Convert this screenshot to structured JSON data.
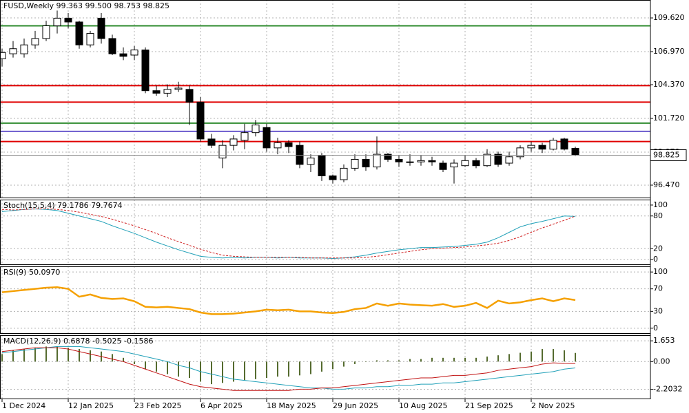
{
  "chart_data": [
    {
      "type": "candlestick",
      "title": "FUSD,Weekly  99.363 99.500 98.753 98.825",
      "categories": [
        "1 Dec 2024",
        null,
        null,
        null,
        null,
        null,
        "12 Jan 2025",
        null,
        null,
        null,
        null,
        null,
        "23 Feb 2025",
        null,
        null,
        null,
        null,
        null,
        "6 Apr 2025",
        null,
        null,
        null,
        null,
        null,
        "18 May 2025",
        null,
        null,
        null,
        null,
        null,
        "29 Jun 2025",
        null,
        null,
        null,
        null,
        null,
        "10 Aug 2025",
        null,
        null,
        null,
        null,
        null,
        "21 Sep 2025",
        null,
        null,
        null,
        null,
        null,
        "2 Nov 2025",
        null,
        null,
        null,
        null
      ],
      "open": [
        106.4,
        106.8,
        106.8,
        107.5,
        108.0,
        109.0,
        109.6,
        109.3,
        107.5,
        109.6,
        108.0,
        106.8,
        106.7,
        107.1,
        103.9,
        103.7,
        104.0,
        104.0,
        103.0,
        100.1,
        98.6,
        99.6,
        100.0,
        100.6,
        101.0,
        99.4,
        99.8,
        99.6,
        98.1,
        98.8,
        97.2,
        96.9,
        97.8,
        98.5,
        97.9,
        98.9,
        98.5,
        98.3,
        98.3,
        98.4,
        98.2,
        97.9,
        98.0,
        98.4,
        98.0,
        98.9,
        98.2,
        98.7,
        99.4,
        99.6,
        99.3,
        100.1,
        99.363
      ],
      "high": [
        107.2,
        107.8,
        108.0,
        108.6,
        109.4,
        110.2,
        110.0,
        109.4,
        108.6,
        110.0,
        108.3,
        107.3,
        107.4,
        107.3,
        104.3,
        104.4,
        104.6,
        104.3,
        103.4,
        100.5,
        100.0,
        100.4,
        101.3,
        101.6,
        101.3,
        100.2,
        100.0,
        99.9,
        98.9,
        99.0,
        97.3,
        98.1,
        98.9,
        98.9,
        100.3,
        99.0,
        98.8,
        98.9,
        98.8,
        98.7,
        98.4,
        98.5,
        98.8,
        98.6,
        99.3,
        99.1,
        99.1,
        99.6,
        99.9,
        99.8,
        100.2,
        100.2,
        99.5
      ],
      "low": [
        105.8,
        106.5,
        106.5,
        107.2,
        107.8,
        108.4,
        108.8,
        107.2,
        107.3,
        107.6,
        106.7,
        106.3,
        106.3,
        103.7,
        103.5,
        103.4,
        103.8,
        101.2,
        99.9,
        99.4,
        97.8,
        99.2,
        99.3,
        100.3,
        99.1,
        98.9,
        99.0,
        97.8,
        97.5,
        96.8,
        96.6,
        96.7,
        97.6,
        97.6,
        97.7,
        98.3,
        97.9,
        98.0,
        98.0,
        98.0,
        97.5,
        96.6,
        97.9,
        97.8,
        97.9,
        97.9,
        98.0,
        98.5,
        99.1,
        99.0,
        99.2,
        99.2,
        98.753
      ],
      "close": [
        106.9,
        107.2,
        107.5,
        108.0,
        109.0,
        109.6,
        109.3,
        107.5,
        108.4,
        108.0,
        106.8,
        106.6,
        107.1,
        103.9,
        103.7,
        104.0,
        104.1,
        103.0,
        100.1,
        99.6,
        99.6,
        100.1,
        100.6,
        101.2,
        99.4,
        99.8,
        99.5,
        98.1,
        98.6,
        97.2,
        96.9,
        97.8,
        98.5,
        97.9,
        98.9,
        98.5,
        98.3,
        98.3,
        98.4,
        98.3,
        97.7,
        98.2,
        98.4,
        98.0,
        98.9,
        98.1,
        98.7,
        99.4,
        99.6,
        99.3,
        100.0,
        99.3,
        98.825
      ],
      "up_color": "#ffffff",
      "down_color": "#000000",
      "levels": [
        {
          "value": 109.0,
          "color": "#2e8b2e"
        },
        {
          "value": 104.3,
          "color": "#e00000"
        },
        {
          "value": 103.0,
          "color": "#e00000"
        },
        {
          "value": 101.35,
          "color": "#2e8b2e"
        },
        {
          "value": 100.7,
          "color": "#6a5acd"
        },
        {
          "value": 99.9,
          "color": "#e00000"
        }
      ],
      "ylim": [
        95.44,
        111.03
      ],
      "yticks": [
        {
          "value": 109.62,
          "label": "109.620"
        },
        {
          "value": 106.97,
          "label": "106.970"
        },
        {
          "value": 104.37,
          "label": "104.370"
        },
        {
          "value": 101.72,
          "label": "101.720"
        },
        {
          "value": 99.07,
          "label": "99.070"
        },
        {
          "value": 96.47,
          "label": "96.470"
        }
      ],
      "grid": true
    },
    {
      "type": "line",
      "title": "Stoch(15,5,4) 79.1786 79.7674",
      "series": [
        {
          "color": "#20a0b8",
          "dash": false,
          "values": [
            88,
            90,
            92,
            93,
            92,
            90,
            85,
            80,
            75,
            70,
            62,
            55,
            48,
            40,
            32,
            25,
            18,
            12,
            6,
            4,
            3,
            4,
            3,
            4,
            4,
            3,
            4,
            3,
            3,
            3,
            2,
            3,
            5,
            8,
            12,
            15,
            18,
            20,
            22,
            22,
            23,
            24,
            26,
            28,
            32,
            40,
            50,
            60,
            66,
            70,
            75,
            80,
            79.1786
          ]
        },
        {
          "color": "#d02020",
          "dash": true,
          "values": [
            92,
            91,
            92,
            93,
            93,
            92,
            90,
            87,
            83,
            79,
            74,
            68,
            62,
            55,
            48,
            40,
            33,
            26,
            19,
            13,
            8,
            6,
            5,
            4,
            4,
            4,
            4,
            4,
            3,
            3,
            3,
            3,
            3,
            4,
            6,
            9,
            12,
            15,
            18,
            20,
            21,
            22,
            23,
            25,
            27,
            30,
            35,
            42,
            50,
            58,
            65,
            72,
            79.7674
          ]
        }
      ],
      "ylim": [
        -10,
        110
      ],
      "yticks": [
        0,
        20,
        80,
        100
      ],
      "grid": true
    },
    {
      "type": "line",
      "title": "RSI(9) 50.0970",
      "series": [
        {
          "color": "#f5a000",
          "dash": false,
          "values": [
            64,
            66,
            68,
            70,
            72,
            73,
            70,
            56,
            60,
            54,
            52,
            53,
            48,
            38,
            37,
            38,
            36,
            34,
            28,
            25,
            25,
            26,
            28,
            30,
            33,
            32,
            33,
            30,
            30,
            28,
            27,
            29,
            34,
            36,
            44,
            40,
            44,
            42,
            41,
            40,
            43,
            38,
            40,
            45,
            36,
            49,
            44,
            46,
            50,
            53,
            48,
            53,
            50.097
          ]
        }
      ],
      "ylim": [
        -10,
        110
      ],
      "yticks": [
        0,
        30,
        70,
        100
      ],
      "grid": true
    },
    {
      "type": "macd",
      "title": "MACD(12,26,9) 0.6878 -0.5025 -0.1586",
      "series": [
        {
          "color": "#556b2f",
          "style": "histogram",
          "values": [
            0.6,
            0.9,
            1.0,
            1.1,
            1.2,
            1.2,
            1.1,
            1.0,
            0.9,
            0.8,
            0.6,
            0.3,
            -0.2,
            -0.6,
            -0.8,
            -1.0,
            -1.2,
            -1.3,
            -1.6,
            -1.8,
            -1.7,
            -1.6,
            -1.5,
            -1.4,
            -1.3,
            -1.2,
            -1.2,
            -1.1,
            -1.0,
            -0.8,
            -0.6,
            -0.4,
            -0.2,
            0,
            0.1,
            0.1,
            0.1,
            0.2,
            0.2,
            0.3,
            0.3,
            0.3,
            0.3,
            0.3,
            0.4,
            0.5,
            0.6,
            0.7,
            0.8,
            1.0,
            1.0,
            0.9,
            0.6878
          ]
        },
        {
          "color": "#20a0b8",
          "style": "line",
          "values": [
            0.7,
            0.8,
            0.9,
            1.0,
            1.1,
            1.2,
            1.2,
            1.2,
            1.1,
            1.0,
            0.9,
            0.8,
            0.6,
            0.4,
            0.2,
            0,
            -0.3,
            -0.5,
            -0.8,
            -1.0,
            -1.2,
            -1.4,
            -1.5,
            -1.6,
            -1.7,
            -1.8,
            -1.9,
            -2.0,
            -2.1,
            -2.1,
            -2.2,
            -2.2,
            -2.1,
            -2.1,
            -2.0,
            -2.0,
            -1.9,
            -1.9,
            -1.8,
            -1.8,
            -1.7,
            -1.7,
            -1.6,
            -1.5,
            -1.4,
            -1.3,
            -1.2,
            -1.1,
            -1.0,
            -0.9,
            -0.8,
            -0.6,
            -0.5025
          ]
        },
        {
          "color": "#c01010",
          "style": "line",
          "values": [
            0.8,
            0.9,
            1.0,
            1.1,
            1.1,
            1.1,
            1.0,
            0.8,
            0.6,
            0.4,
            0.2,
            0,
            -0.3,
            -0.6,
            -0.9,
            -1.2,
            -1.5,
            -1.8,
            -2.0,
            -2.1,
            -2.2,
            -2.3,
            -2.3,
            -2.3,
            -2.3,
            -2.3,
            -2.3,
            -2.2,
            -2.2,
            -2.1,
            -2.1,
            -2.0,
            -1.9,
            -1.8,
            -1.7,
            -1.6,
            -1.5,
            -1.4,
            -1.3,
            -1.3,
            -1.2,
            -1.1,
            -1.1,
            -1.0,
            -0.9,
            -0.7,
            -0.6,
            -0.5,
            -0.4,
            -0.2,
            -0.1,
            -0.15,
            -0.1586
          ]
        }
      ],
      "ylim": [
        -3.0,
        2.1
      ],
      "yticks": [
        1.653,
        {
          "value": 0,
          "label": "0.00"
        },
        -2.2032
      ],
      "grid": true
    }
  ]
}
